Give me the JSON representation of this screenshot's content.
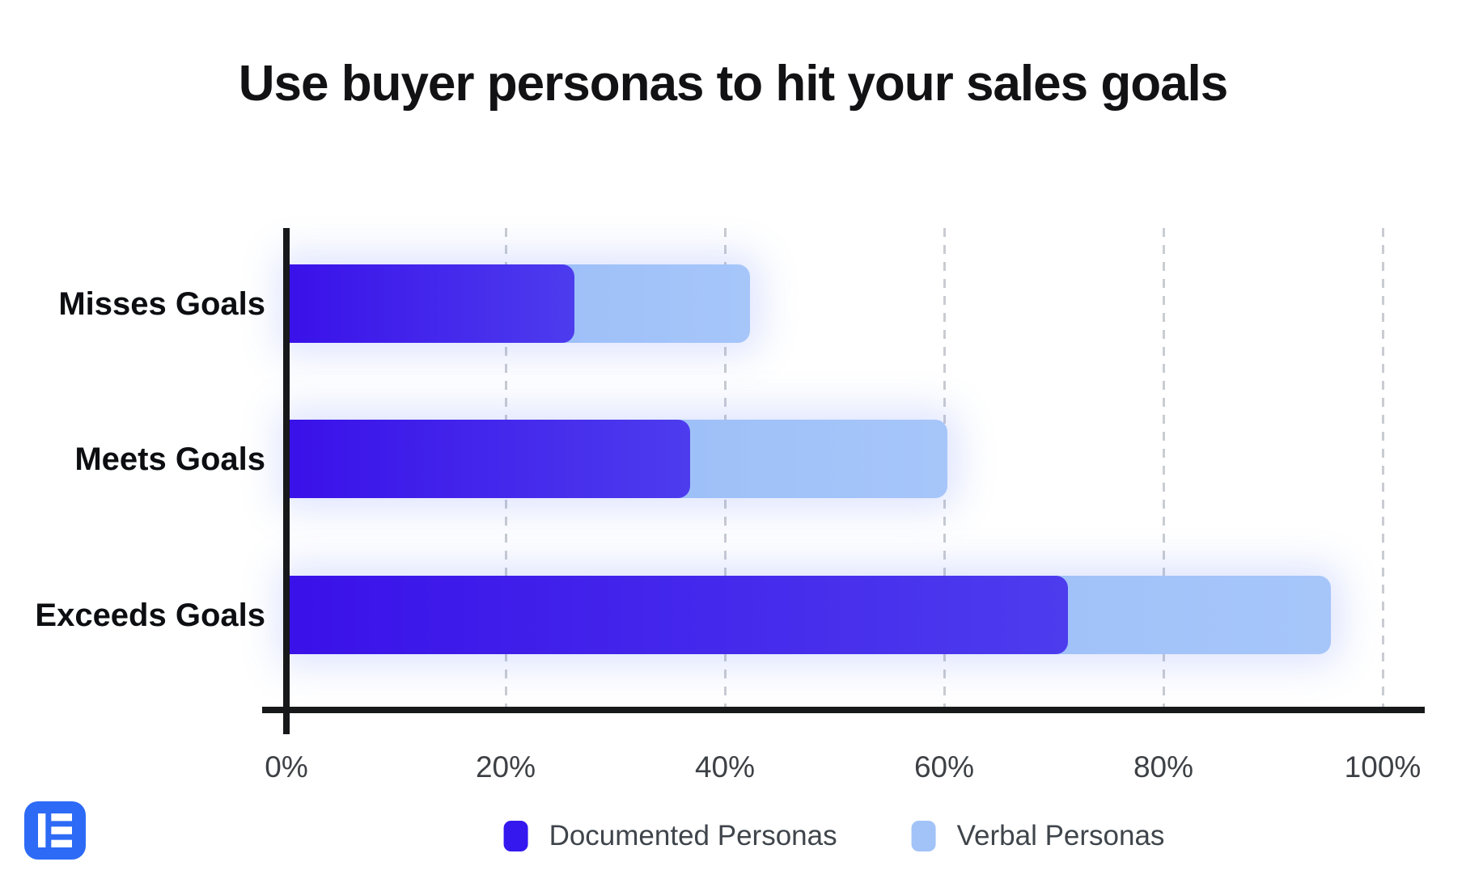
{
  "title": "Use buyer personas to hit your sales goals",
  "chart_data": {
    "type": "bar",
    "orientation": "horizontal",
    "stacked": true,
    "title": "Use buyer personas to hit your sales goals",
    "categories": [
      "Misses Goals",
      "Meets Goals",
      "Exceeds Goals"
    ],
    "series": [
      {
        "name": "Documented Personas",
        "values": [
          26,
          36.5,
          71
        ],
        "color_start": "#3a11e9",
        "color_end": "#4d3cee",
        "legend_color": "#3418ee"
      },
      {
        "name": "Verbal Personas",
        "values": [
          16,
          23.5,
          24
        ],
        "color_start": "#92b7f5",
        "color_end": "#a6c6fa",
        "legend_color": "#a2c3f8"
      }
    ],
    "stack_totals": [
      42,
      60,
      95
    ],
    "x_ticks": [
      "0%",
      "20%",
      "40%",
      "60%",
      "80%",
      "100%"
    ],
    "x_tick_values": [
      0,
      20,
      40,
      60,
      80,
      100
    ],
    "xlim": [
      0,
      100
    ],
    "grid": "dashed vertical gridlines at each tick except 0%",
    "legend_position": "bottom"
  },
  "legend": {
    "items": [
      "Documented Personas",
      "Verbal Personas"
    ]
  },
  "logo": {
    "name": "elementor-logo",
    "background": "#2d6bf6",
    "glyph": "E"
  },
  "colors": {
    "background": "#ffffff",
    "axis": "#17181a",
    "gridline": "#c9ccd1",
    "tick_label": "#3d4145",
    "category_label": "#0c0e11",
    "legend_label": "#3f454b",
    "title": "#121215"
  }
}
